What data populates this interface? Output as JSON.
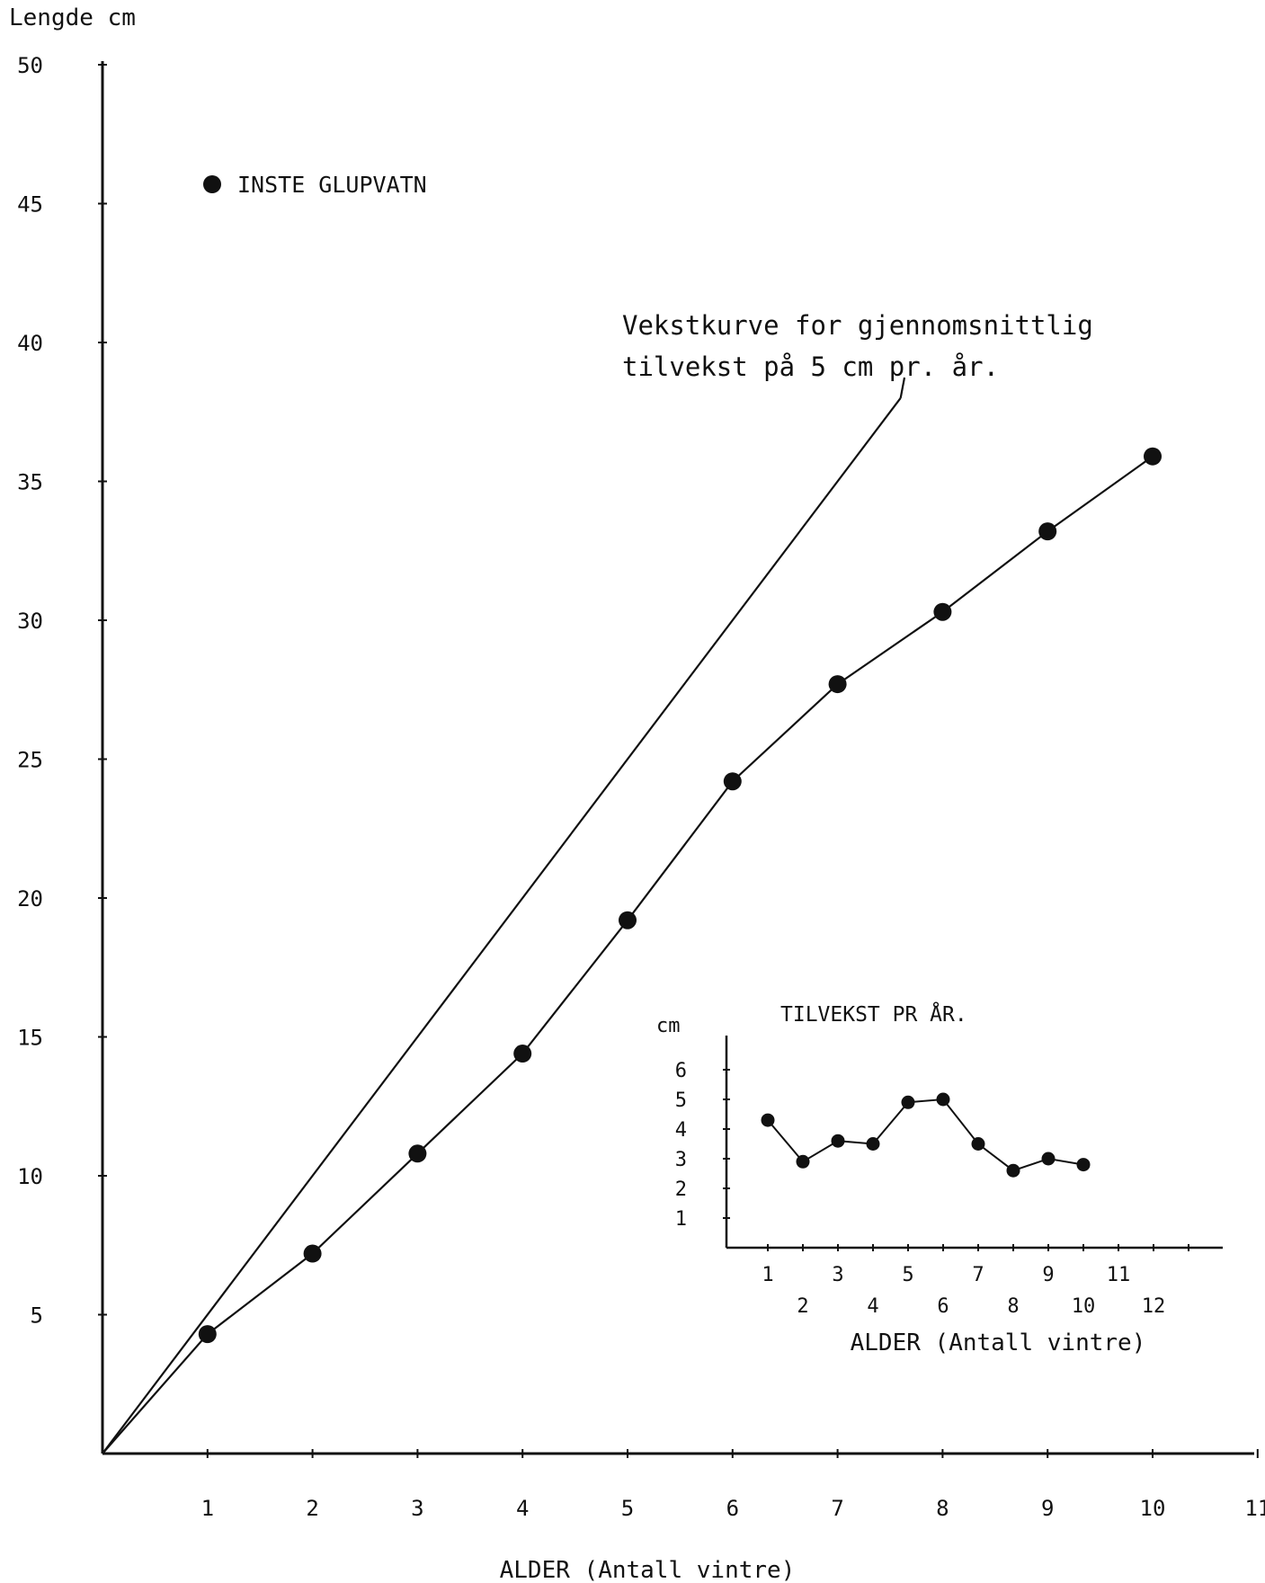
{
  "chart_data": [
    {
      "type": "line",
      "title": "",
      "ylabel": "Lengde cm",
      "xlabel": "ALDER (Antall vintre)",
      "xlim": [
        0,
        11
      ],
      "ylim": [
        0,
        50
      ],
      "x_ticks": [
        "1",
        "2",
        "3",
        "4",
        "5",
        "6",
        "7",
        "8",
        "9",
        "10",
        "11"
      ],
      "y_ticks": [
        "5",
        "10",
        "15",
        "20",
        "25",
        "30",
        "35",
        "40",
        "45",
        "50"
      ],
      "series": [
        {
          "name": "INSTE GLUPVATN",
          "x": [
            0,
            1,
            2,
            3,
            4,
            5,
            6,
            7,
            8,
            9,
            10
          ],
          "y": [
            0,
            4.3,
            7.2,
            10.8,
            14.4,
            19.2,
            24.2,
            27.7,
            30.3,
            33.2,
            35.9
          ]
        },
        {
          "name": "",
          "x": [
            0,
            7.6
          ],
          "y": [
            0,
            38.0
          ]
        }
      ],
      "annotations": [
        "Vekstkurve for gjennomsnittlig",
        "tilvekst på 5 cm pr. år."
      ],
      "legend_position": "top-left",
      "grid": false
    },
    {
      "type": "line",
      "title": "TILVEKST PR ÅR.",
      "ylabel": "cm",
      "xlabel": "ALDER (Antall vintre)",
      "xlim": [
        0,
        13.5
      ],
      "ylim": [
        0,
        6.5
      ],
      "x_ticks_upper": [
        "1",
        "3",
        "5",
        "7",
        "9",
        "11"
      ],
      "x_ticks_lower": [
        "2",
        "4",
        "6",
        "8",
        "10",
        "12"
      ],
      "y_ticks": [
        "1",
        "2",
        "3",
        "4",
        "5",
        "6"
      ],
      "series": [
        {
          "name": "",
          "x": [
            1,
            2,
            3,
            4,
            5,
            6,
            7,
            8,
            9,
            10
          ],
          "y": [
            4.3,
            2.9,
            3.6,
            3.5,
            4.9,
            5.0,
            3.5,
            2.6,
            3.0,
            2.8
          ]
        }
      ],
      "grid": false
    }
  ]
}
